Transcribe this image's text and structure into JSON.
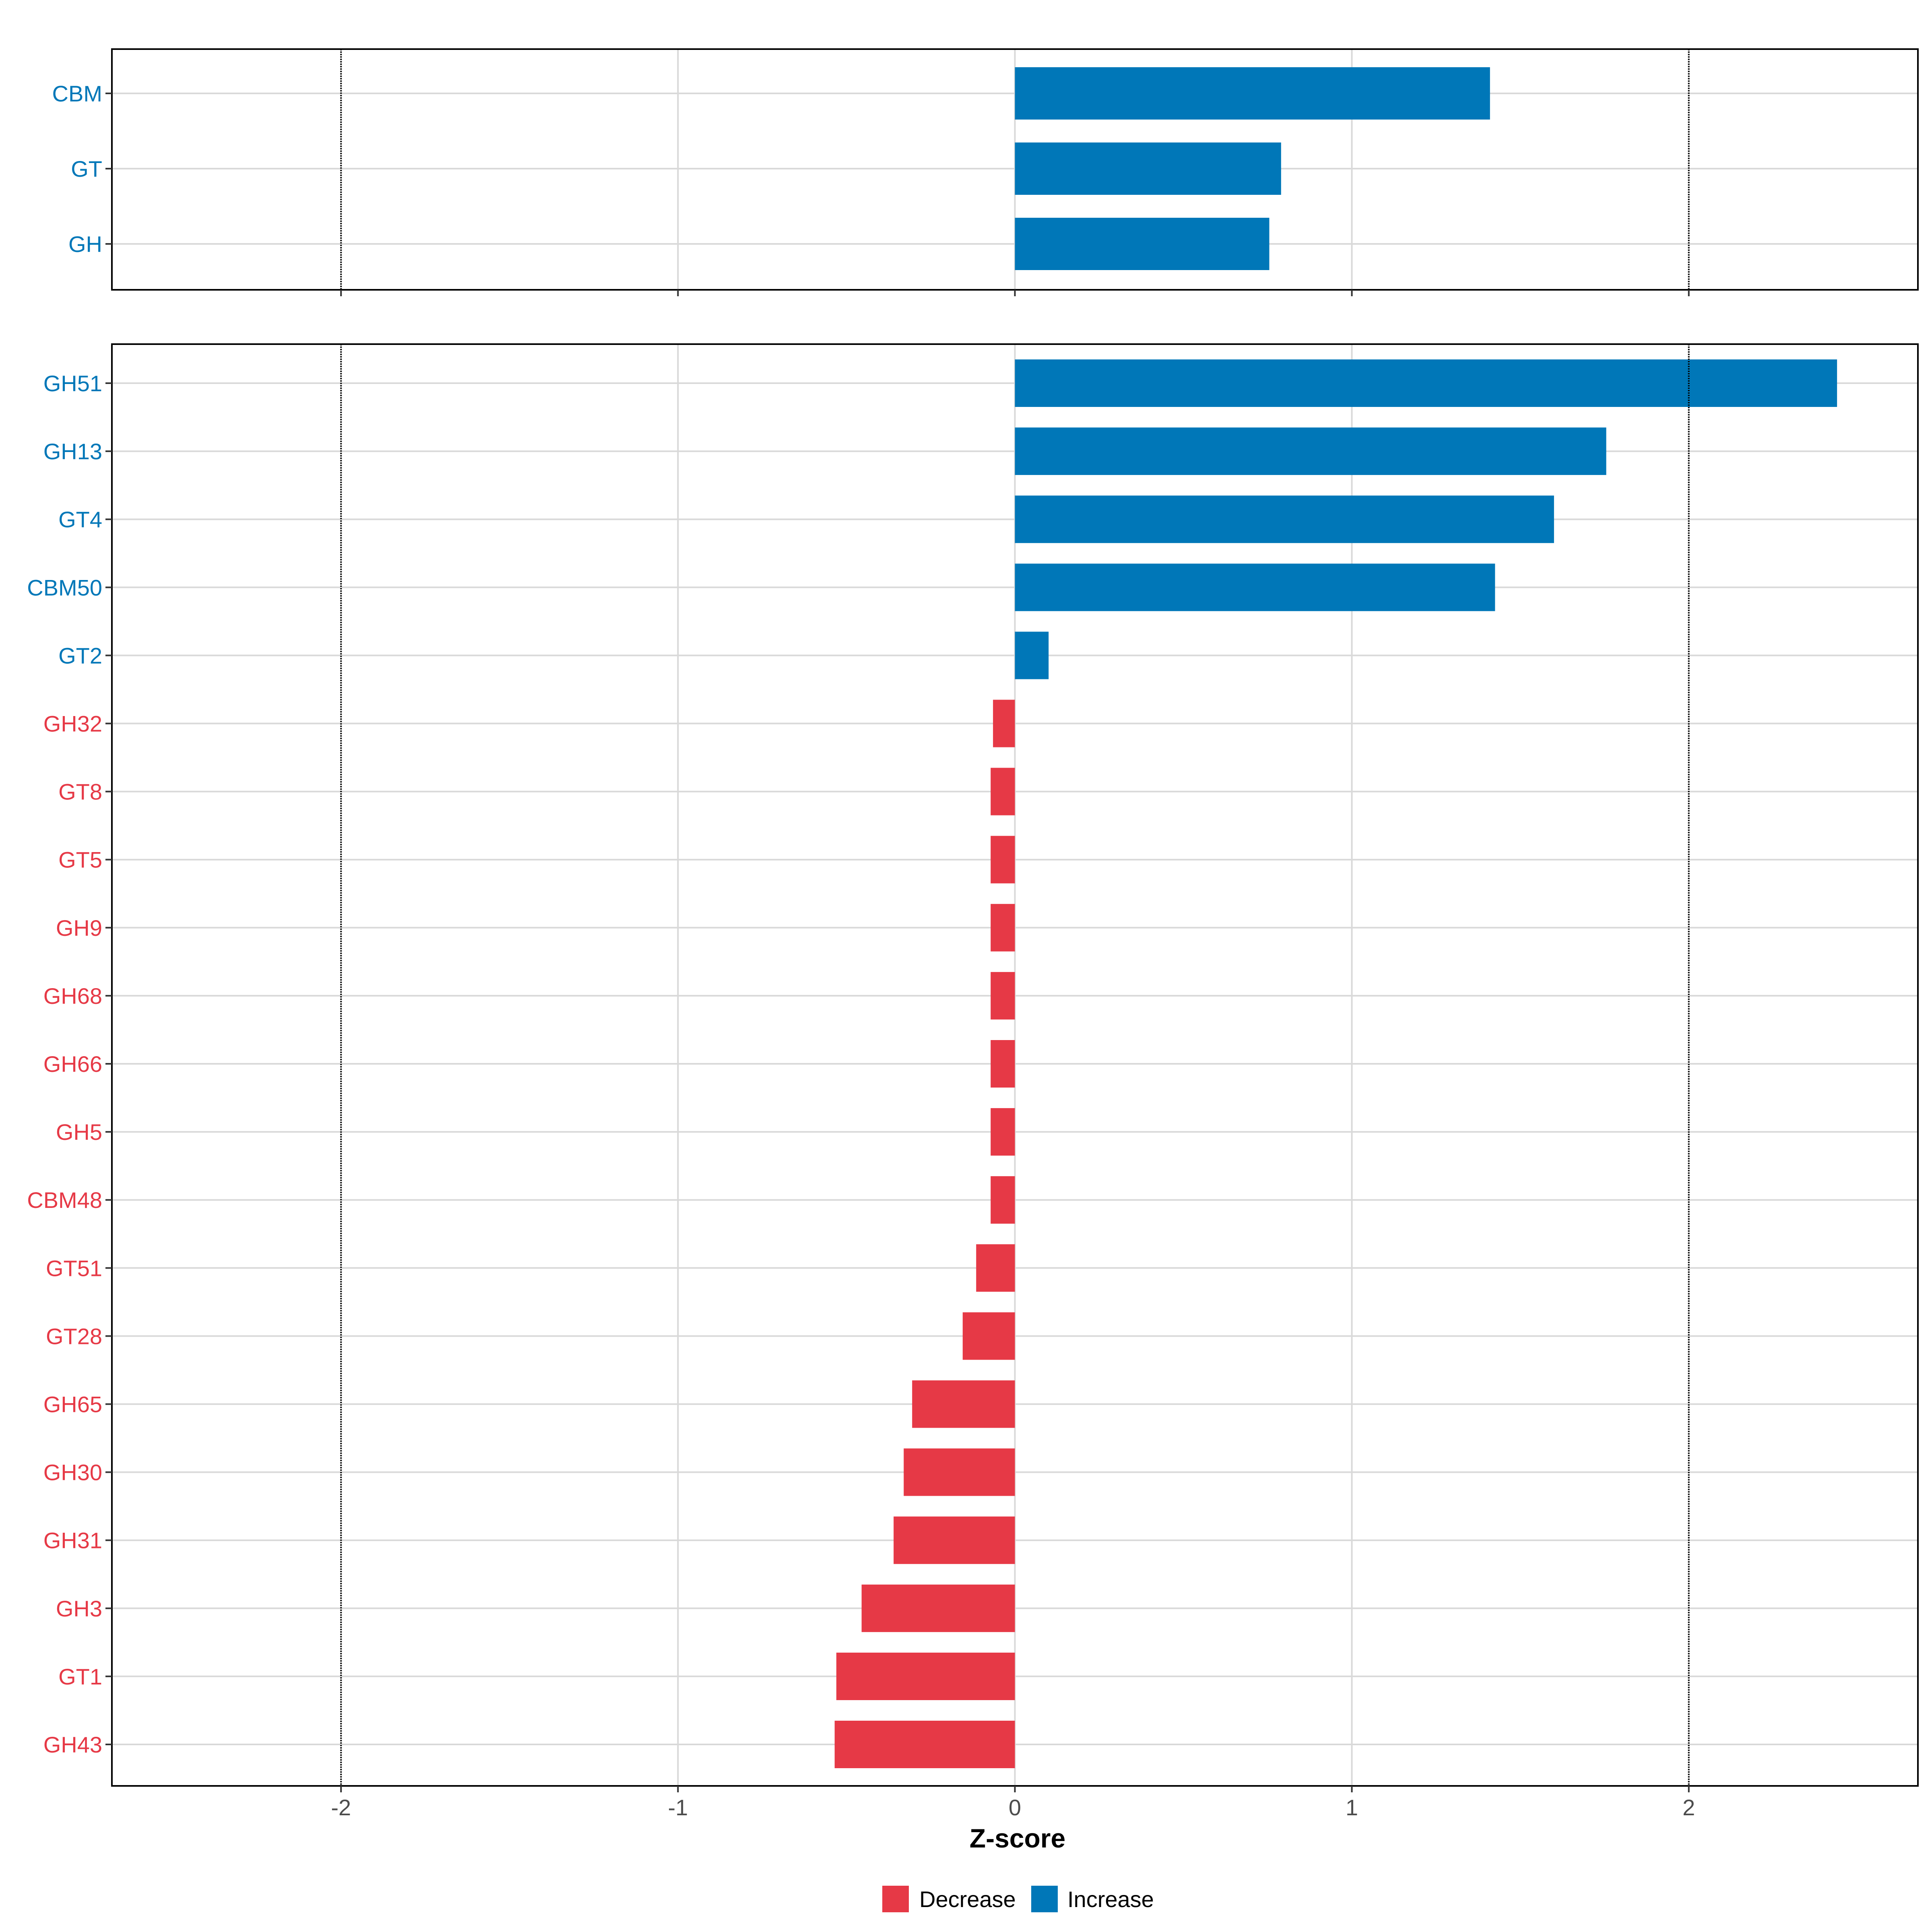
{
  "colors": {
    "increase": "#0077B8",
    "decrease": "#E63946",
    "grid": "#D9D9D9",
    "ref_line": "#000000",
    "tick_text": "#4D4D4D"
  },
  "chart_data": [
    {
      "type": "bar",
      "orientation": "horizontal",
      "panel": "top",
      "categories": [
        "CBM",
        "GT",
        "GH"
      ],
      "values": [
        1.41,
        0.79,
        0.755
      ],
      "direction": [
        "Increase",
        "Increase",
        "Increase"
      ],
      "xlim": [
        -2.68,
        2.68
      ],
      "grid": true,
      "reference_lines": [
        -2,
        2
      ]
    },
    {
      "type": "bar",
      "orientation": "horizontal",
      "panel": "bottom",
      "categories": [
        "GH51",
        "GH13",
        "GT4",
        "CBM50",
        "GT2",
        "GH32",
        "GT8",
        "GT5",
        "GH9",
        "GH68",
        "GH66",
        "GH5",
        "CBM48",
        "GT51",
        "GT28",
        "GH65",
        "GH30",
        "GH31",
        "GH3",
        "GT1",
        "GH43"
      ],
      "values": [
        2.44,
        1.755,
        1.6,
        1.425,
        0.1,
        -0.065,
        -0.072,
        -0.072,
        -0.072,
        -0.072,
        -0.072,
        -0.072,
        -0.072,
        -0.115,
        -0.155,
        -0.305,
        -0.33,
        -0.36,
        -0.455,
        -0.53,
        -0.535
      ],
      "direction": [
        "Increase",
        "Increase",
        "Increase",
        "Increase",
        "Increase",
        "Decrease",
        "Decrease",
        "Decrease",
        "Decrease",
        "Decrease",
        "Decrease",
        "Decrease",
        "Decrease",
        "Decrease",
        "Decrease",
        "Decrease",
        "Decrease",
        "Decrease",
        "Decrease",
        "Decrease",
        "Decrease"
      ],
      "xlim": [
        -2.68,
        2.68
      ],
      "xticks": [
        -2,
        -1,
        0,
        1,
        2
      ],
      "xlabel": "Z-score",
      "grid": true,
      "reference_lines": [
        -2,
        2
      ]
    }
  ],
  "legend": {
    "position": "bottom",
    "items": [
      {
        "label": "Decrease",
        "color": "#E63946"
      },
      {
        "label": "Increase",
        "color": "#0077B8"
      }
    ]
  }
}
